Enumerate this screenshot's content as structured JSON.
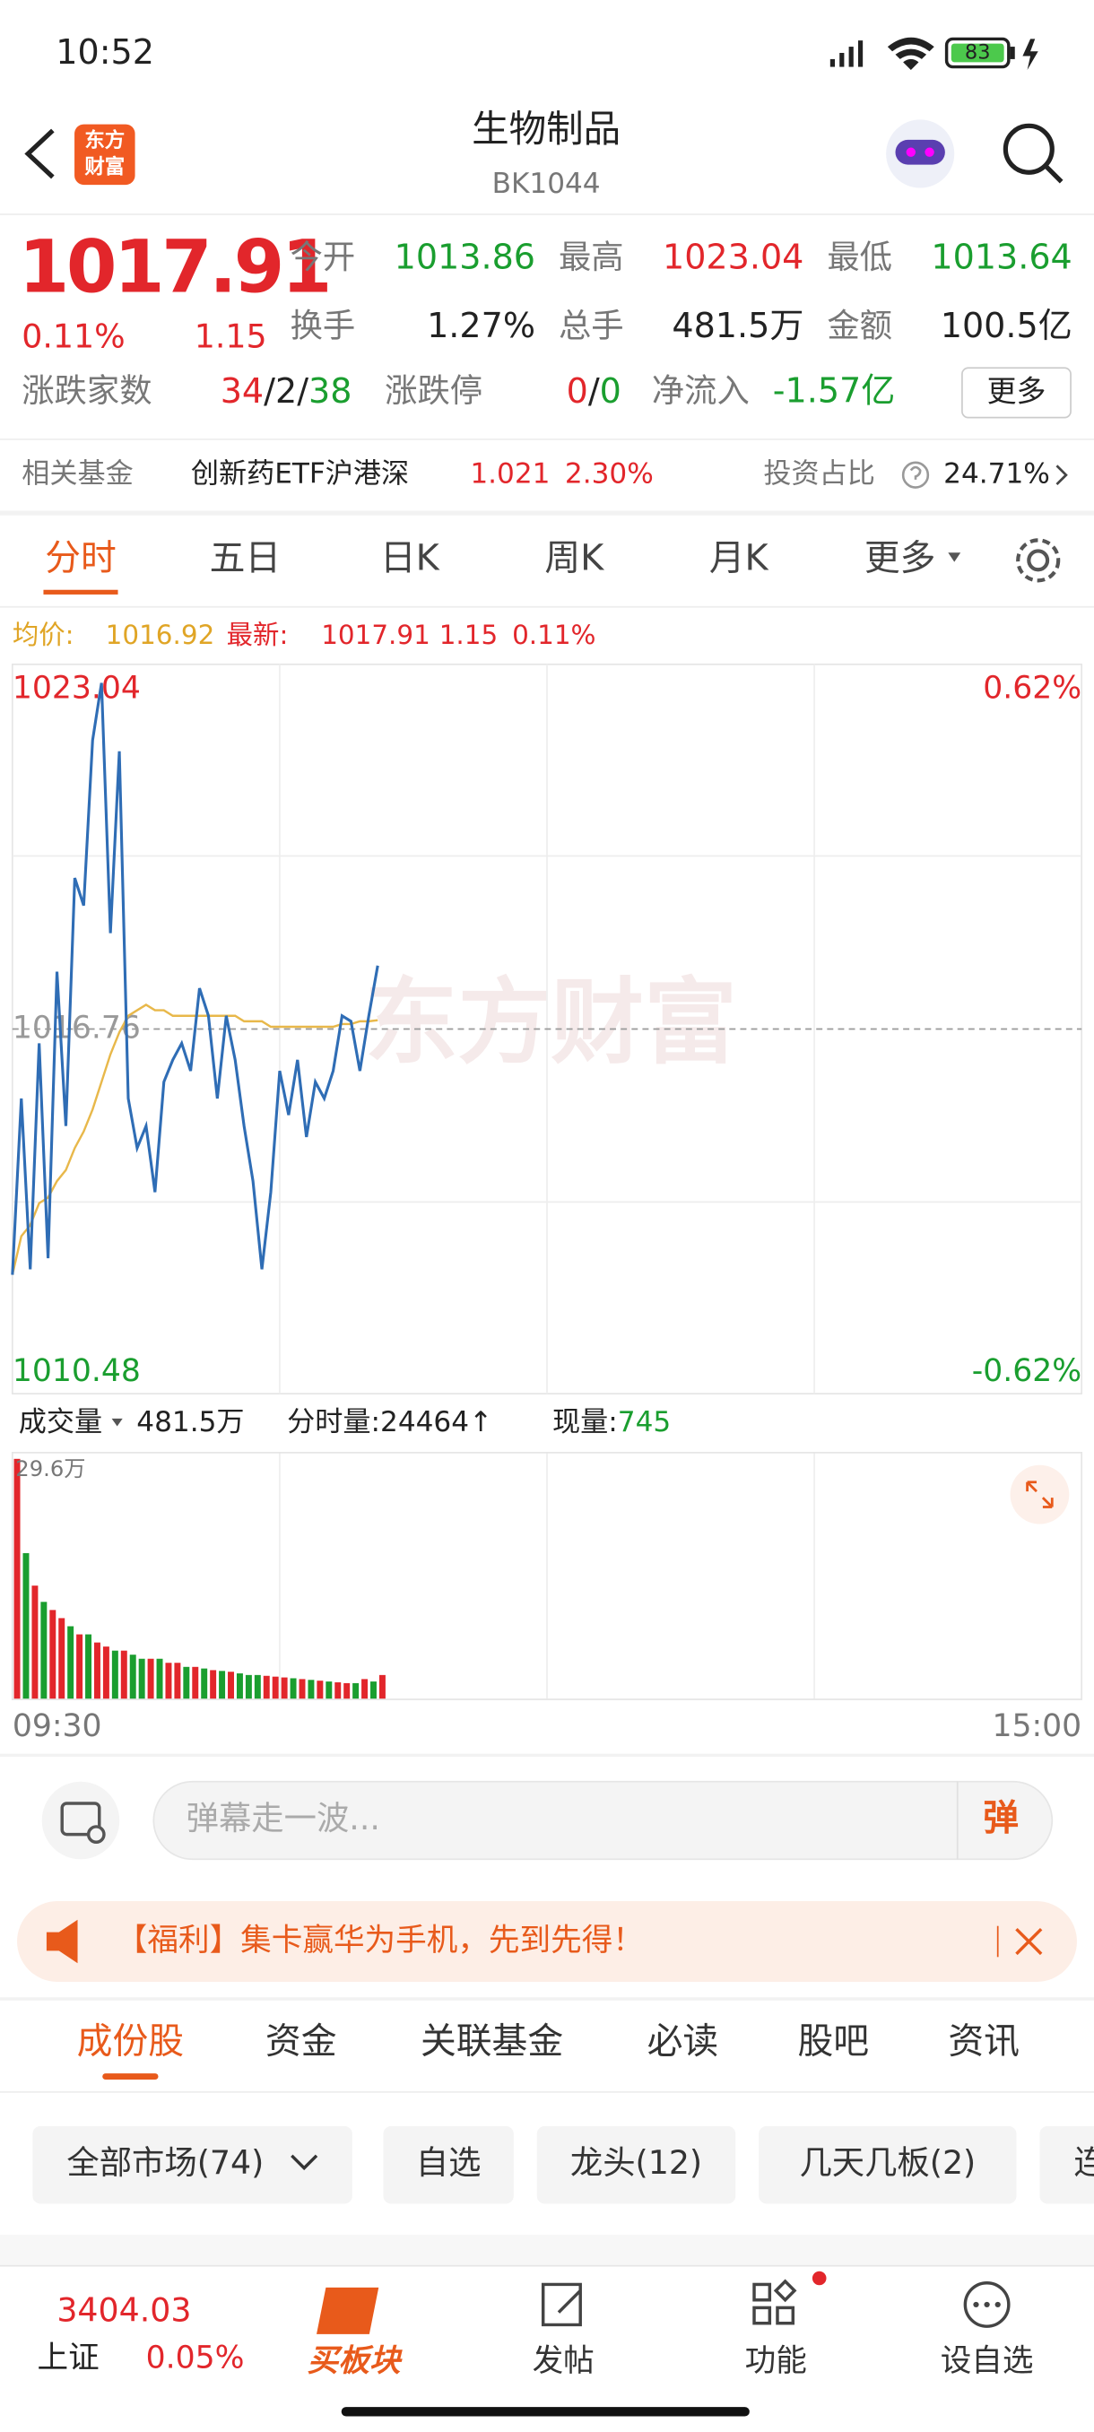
{
  "status": {
    "time": "10:52",
    "battery": "83"
  },
  "header": {
    "title": "生物制品",
    "code": "BK1044",
    "logo_lines": [
      "东方",
      "财富"
    ]
  },
  "quote": {
    "price": "1017.91",
    "pct": "0.11%",
    "change": "1.15",
    "stats": [
      [
        "今开",
        "1013.86"
      ],
      [
        "最高",
        "1023.04"
      ],
      [
        "最低",
        "1013.64"
      ],
      [
        "换手",
        "1.27%"
      ],
      [
        "总手",
        "481.5万"
      ],
      [
        "金额",
        "100.5亿"
      ]
    ],
    "breadth_label": "涨跌家数",
    "up": "34",
    "flat": "2",
    "down": "38",
    "sep": "/",
    "limit_label": "涨跌停",
    "limit_up": "0",
    "limit_down": "0",
    "flow_label": "净流入",
    "flow": "-1.57亿",
    "more": "更多"
  },
  "fund": {
    "label": "相关基金",
    "name": "创新药ETF沪港深",
    "price": "1.021",
    "pct": "2.30%",
    "ratio_label": "投资占比",
    "ratio": "24.71%"
  },
  "tabs": [
    "分时",
    "五日",
    "日K",
    "周K",
    "月K",
    "更多"
  ],
  "legend": {
    "avg_label": "均价:",
    "avg": "1016.92",
    "last_label": "最新:",
    "last": "1017.91",
    "change": "1.15",
    "pct": "0.11%"
  },
  "watermark": "东方财富",
  "chart_data": [
    {
      "type": "line",
      "x": [
        0,
        2,
        4,
        6,
        8,
        10,
        12,
        14,
        16,
        18,
        20,
        22,
        24,
        26,
        28,
        30,
        32,
        34,
        36,
        38,
        40,
        42,
        44,
        46,
        48,
        50,
        52,
        54,
        56,
        58,
        60,
        62,
        64,
        66,
        68,
        70,
        72,
        74,
        76,
        78,
        80,
        82
      ],
      "xlim": [
        0,
        240
      ],
      "series": [
        {
          "name": "价格",
          "color": "#2f6db5",
          "values": [
            1012.3,
            1015.5,
            1012.4,
            1016.5,
            1012.6,
            1017.8,
            1015.0,
            1019.5,
            1019.0,
            1022.0,
            1023.04,
            1018.5,
            1021.8,
            1015.5,
            1014.6,
            1015.0,
            1013.8,
            1015.8,
            1016.2,
            1016.5,
            1016.0,
            1017.5,
            1017.0,
            1015.5,
            1017.0,
            1016.2,
            1015.0,
            1014.0,
            1012.4,
            1013.8,
            1016.0,
            1015.2,
            1016.2,
            1014.8,
            1015.8,
            1015.5,
            1016.0,
            1017.0,
            1016.9,
            1016.0,
            1017.0,
            1017.91
          ]
        },
        {
          "name": "均价",
          "color": "#e8b84a",
          "values": [
            1012.3,
            1013.0,
            1013.2,
            1013.6,
            1013.7,
            1014.0,
            1014.2,
            1014.6,
            1014.9,
            1015.3,
            1015.8,
            1016.3,
            1016.7,
            1017.0,
            1017.1,
            1017.2,
            1017.1,
            1017.1,
            1017.0,
            1017.0,
            1017.0,
            1017.0,
            1017.0,
            1017.0,
            1017.0,
            1017.0,
            1016.9,
            1016.9,
            1016.9,
            1016.8,
            1016.8,
            1016.8,
            1016.8,
            1016.8,
            1016.8,
            1016.8,
            1016.8,
            1016.85,
            1016.85,
            1016.9,
            1016.9,
            1016.92
          ]
        }
      ],
      "ylim": [
        1010.48,
        1023.04
      ],
      "yticks": [
        1023.04,
        1016.76,
        1010.48
      ],
      "ytick_colors": [
        "#e2262b",
        "#999999",
        "#1a9e2f"
      ],
      "y2lim": [
        -0.62,
        0.62
      ],
      "y2ticks": [
        {
          "value": 0.62,
          "label": "0.62%"
        },
        {
          "value": -0.62,
          "label": "-0.62%"
        }
      ],
      "y2tick_colors": [
        "#e2262b",
        "#1a9e2f"
      ],
      "grid": true
    },
    {
      "type": "bar",
      "x": [
        0,
        2,
        4,
        6,
        8,
        10,
        12,
        14,
        16,
        18,
        20,
        22,
        24,
        26,
        28,
        30,
        32,
        34,
        36,
        38,
        40,
        42,
        44,
        46,
        48,
        50,
        52,
        54,
        56,
        58,
        60,
        62,
        64,
        66,
        68,
        70,
        72,
        74,
        76,
        78,
        80,
        82
      ],
      "xlim": [
        0,
        240
      ],
      "xticks": [
        {
          "value": 0,
          "label": "09:30"
        },
        {
          "value": 240,
          "label": "15:00"
        }
      ],
      "series": [
        {
          "name": "成交量",
          "values": [
            29.6,
            18,
            14,
            12,
            11,
            10,
            9,
            8,
            8,
            7,
            6.5,
            6,
            6,
            5.5,
            5,
            5,
            5,
            4.5,
            4.5,
            4,
            4,
            3.8,
            3.6,
            3.5,
            3.4,
            3.2,
            3,
            3,
            2.9,
            2.8,
            2.7,
            2.6,
            2.5,
            2.4,
            2.3,
            2.2,
            2.1,
            2,
            2,
            2.5,
            2.2,
            3
          ],
          "colors": [
            "#e2262b",
            "#1a9e2f",
            "#e2262b",
            "#1a9e2f",
            "#e2262b",
            "#e2262b",
            "#1a9e2f",
            "#e2262b",
            "#1a9e2f",
            "#e2262b",
            "#e2262b",
            "#1a9e2f",
            "#e2262b",
            "#1a9e2f",
            "#1a9e2f",
            "#e2262b",
            "#1a9e2f",
            "#e2262b",
            "#e2262b",
            "#1a9e2f",
            "#e2262b",
            "#1a9e2f",
            "#e2262b",
            "#1a9e2f",
            "#e2262b",
            "#1a9e2f",
            "#1a9e2f",
            "#1a9e2f",
            "#e2262b",
            "#e2262b",
            "#e2262b",
            "#1a9e2f",
            "#e2262b",
            "#1a9e2f",
            "#e2262b",
            "#1a9e2f",
            "#e2262b",
            "#e2262b",
            "#1a9e2f",
            "#e2262b",
            "#1a9e2f",
            "#e2262b"
          ]
        }
      ],
      "ylim": [
        0,
        29.6
      ],
      "yticks": [
        {
          "value": 29.6,
          "label": "29.6万"
        }
      ]
    }
  ],
  "volume_bar": {
    "label": "成交量",
    "total": "481.5万",
    "minute_label": "分时量:",
    "minute": "24464",
    "arrow": "↑",
    "now_label": "现量:",
    "now": "745"
  },
  "comment": {
    "placeholder": "弹幕走一波...",
    "button": "弹"
  },
  "banner": "【福利】集卡赢华为手机，先到先得！",
  "section_tabs": [
    "成份股",
    "资金",
    "关联基金",
    "必读",
    "股吧",
    "资讯"
  ],
  "filters": [
    "全部市场(74)",
    "自选",
    "龙头(12)",
    "几天几板(2)",
    "连"
  ],
  "bottom": {
    "index_value": "3404.03",
    "index_name": "上证",
    "index_pct": "0.05%",
    "nav": [
      "买板块",
      "发帖",
      "功能",
      "设自选"
    ]
  }
}
